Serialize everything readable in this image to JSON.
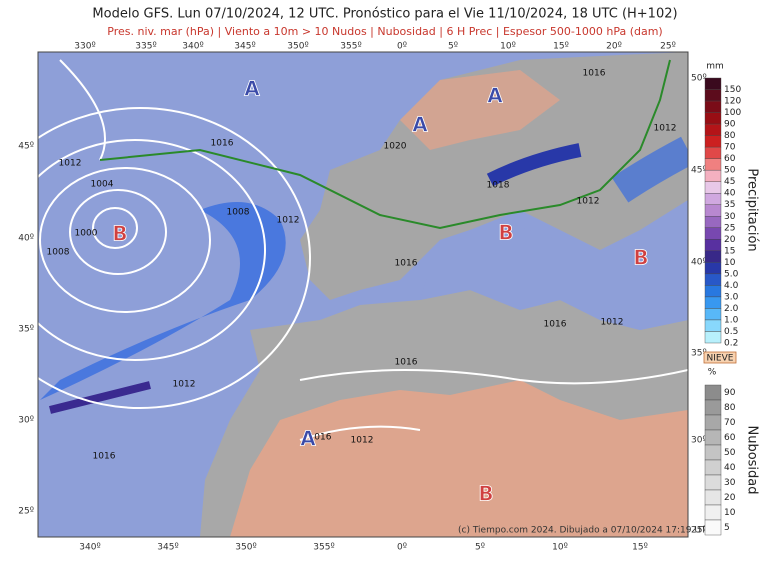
{
  "header": {
    "title": "Modelo GFS. Lun 07/10/2024, 12 UTC. Pronóstico para el Vie 11/10/2024, 18 UTC (H+102)",
    "subtitle": "Pres. niv. mar (hPa) | Viento a 10m > 10 Nudos | Nubosidad | 6 H Prec | Espesor 500-1000 hPa (dam)"
  },
  "map": {
    "top_lon_labels": [
      "330º",
      "335º",
      "340º",
      "345º",
      "350º",
      "355º",
      "0º",
      "5º",
      "10º",
      "15º",
      "20º",
      "25º"
    ],
    "bottom_lon_labels": [
      "340º",
      "345º",
      "350º",
      "355º",
      "0º",
      "5º",
      "10º",
      "15º"
    ],
    "left_lat_labels": [
      "45º",
      "40º",
      "35º",
      "30º",
      "25º"
    ],
    "right_lat_labels": [
      "50º",
      "45º",
      "40º",
      "35º",
      "30º",
      "25º"
    ],
    "pressure_labels": [
      "1012",
      "1004",
      "1008",
      "1000",
      "1008",
      "1016",
      "1012",
      "1016",
      "1016",
      "1012",
      "1016",
      "1012",
      "1016",
      "1020",
      "1018",
      "1012",
      "1016",
      "1012",
      "1016",
      "1012"
    ],
    "highs": [
      "A",
      "A",
      "A",
      "A"
    ],
    "lows": [
      "B",
      "B",
      "B",
      "B"
    ],
    "credit": "(c) Tiempo.com 2024. Dibujado a 07/10/2024 17:19 UTC"
  },
  "precip_legend": {
    "unit": "mm",
    "title": "Precipitación",
    "items": [
      {
        "label": "150",
        "color": "#3a0a1e"
      },
      {
        "label": "120",
        "color": "#5c0c1c"
      },
      {
        "label": "100",
        "color": "#7a0c18"
      },
      {
        "label": "90",
        "color": "#980e14"
      },
      {
        "label": "80",
        "color": "#b41418"
      },
      {
        "label": "70",
        "color": "#cc2020"
      },
      {
        "label": "60",
        "color": "#e04848"
      },
      {
        "label": "50",
        "color": "#f08080"
      },
      {
        "label": "45",
        "color": "#f4b0c0"
      },
      {
        "label": "40",
        "color": "#e8c8e8"
      },
      {
        "label": "35",
        "color": "#d0a8e0"
      },
      {
        "label": "30",
        "color": "#b888d0"
      },
      {
        "label": "25",
        "color": "#9868c0"
      },
      {
        "label": "20",
        "color": "#7848b0"
      },
      {
        "label": "15",
        "color": "#5830a0"
      },
      {
        "label": "10",
        "color": "#382888"
      },
      {
        "label": "5.0",
        "color": "#2838a8"
      },
      {
        "label": "4.0",
        "color": "#2858c8"
      },
      {
        "label": "3.0",
        "color": "#2878e0"
      },
      {
        "label": "2.0",
        "color": "#3898f0"
      },
      {
        "label": "1.0",
        "color": "#58b8f8"
      },
      {
        "label": "0.5",
        "color": "#88d8fc"
      },
      {
        "label": "0.2",
        "color": "#b8f0fc"
      }
    ],
    "snow_label": "NIEVE"
  },
  "cloud_legend": {
    "unit": "%",
    "title": "Nubosidad",
    "items": [
      {
        "label": "90",
        "color": "#8c8c8c"
      },
      {
        "label": "80",
        "color": "#9a9a9a"
      },
      {
        "label": "70",
        "color": "#a8a8a8"
      },
      {
        "label": "60",
        "color": "#b6b6b6"
      },
      {
        "label": "50",
        "color": "#c4c4c4"
      },
      {
        "label": "40",
        "color": "#d0d0d0"
      },
      {
        "label": "30",
        "color": "#dcdcdc"
      },
      {
        "label": "20",
        "color": "#e6e6e6"
      },
      {
        "label": "10",
        "color": "#f0f0f0"
      },
      {
        "label": "5",
        "color": "#fafafa"
      }
    ]
  }
}
